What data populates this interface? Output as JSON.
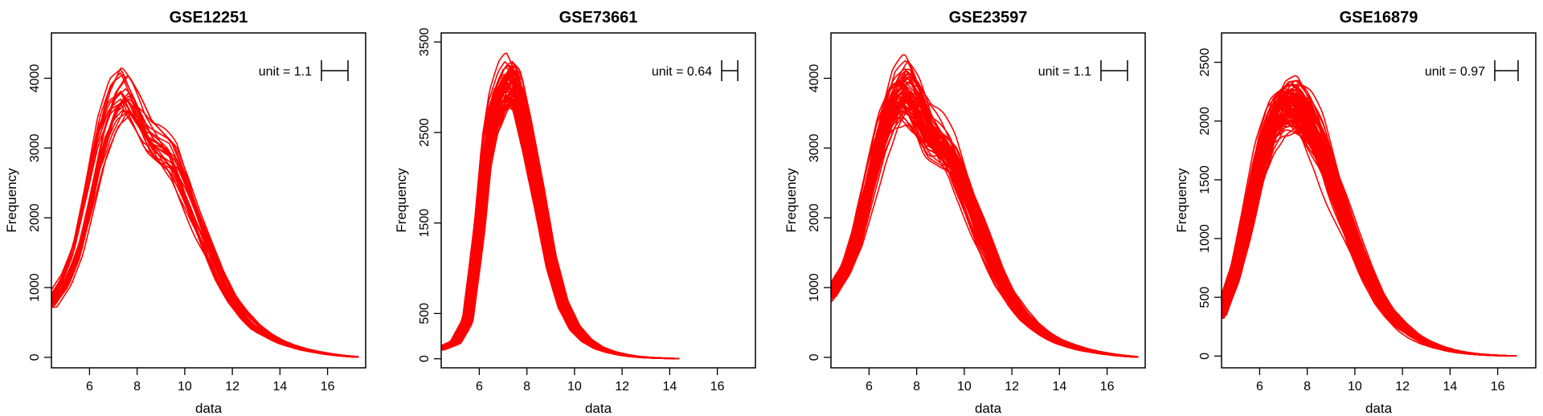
{
  "line_color": "#ff0000",
  "chart_data": [
    {
      "type": "line",
      "title": "GSE12251",
      "xlabel": "data",
      "ylabel": "Frequency",
      "xlim": [
        4.4,
        17.6
      ],
      "ylim": [
        -150,
        4650
      ],
      "xticks": [
        6,
        8,
        10,
        12,
        14,
        16
      ],
      "yticks": [
        0,
        1000,
        2000,
        3000,
        4000
      ],
      "unit_label": "unit = 1.1",
      "grid": false,
      "x_end": 17.3,
      "curve_count": 23,
      "profile": {
        "x": [
          4.4,
          5.0,
          5.5,
          6.0,
          6.5,
          7.0,
          7.5,
          8.0,
          8.5,
          9.0,
          9.5,
          10.0,
          10.5,
          11.0,
          11.5,
          12.0,
          12.5,
          13.0,
          13.5,
          14.0,
          14.5,
          15.0,
          15.5,
          16.0,
          16.5,
          17.0,
          17.3
        ],
        "y": [
          780,
          1100,
          1550,
          2300,
          3100,
          3600,
          3800,
          3500,
          3150,
          3000,
          2850,
          2450,
          1980,
          1560,
          1150,
          830,
          600,
          430,
          320,
          230,
          165,
          115,
          80,
          50,
          28,
          12,
          5
        ]
      }
    },
    {
      "type": "line",
      "title": "GSE73661",
      "xlabel": "data",
      "ylabel": "Frequency",
      "xlim": [
        4.4,
        17.6
      ],
      "ylim": [
        -100,
        3600
      ],
      "xticks": [
        6,
        8,
        10,
        12,
        14,
        16
      ],
      "yticks": [
        0,
        500,
        1500,
        2500,
        3500
      ],
      "unit_label": "unit = 0.64",
      "grid": false,
      "x_end": 14.4,
      "curve_count": 60,
      "profile": {
        "x": [
          4.4,
          5.0,
          5.5,
          6.0,
          6.3,
          6.6,
          7.0,
          7.3,
          7.6,
          8.0,
          8.5,
          9.0,
          9.5,
          10.0,
          10.5,
          11.0,
          11.5,
          12.0,
          12.5,
          13.0,
          13.5,
          14.0,
          14.4
        ],
        "y": [
          110,
          180,
          420,
          1450,
          2250,
          2650,
          2900,
          3000,
          2900,
          2450,
          1800,
          1080,
          600,
          340,
          200,
          120,
          75,
          45,
          25,
          14,
          8,
          4,
          2
        ]
      }
    },
    {
      "type": "line",
      "title": "GSE23597",
      "xlabel": "data",
      "ylabel": "Frequency",
      "xlim": [
        4.4,
        17.6
      ],
      "ylim": [
        -150,
        4650
      ],
      "xticks": [
        6,
        8,
        10,
        12,
        14,
        16
      ],
      "yticks": [
        0,
        1000,
        2000,
        3000,
        4000
      ],
      "unit_label": "unit = 1.1",
      "grid": false,
      "x_end": 17.3,
      "curve_count": 60,
      "profile": {
        "x": [
          4.4,
          5.0,
          5.5,
          6.0,
          6.5,
          7.0,
          7.5,
          8.0,
          8.5,
          9.0,
          9.5,
          10.0,
          10.5,
          11.0,
          11.5,
          12.0,
          12.5,
          13.0,
          13.5,
          14.0,
          14.5,
          15.0,
          15.5,
          16.0,
          16.5,
          17.0,
          17.3
        ],
        "y": [
          900,
          1250,
          1750,
          2500,
          3250,
          3700,
          3850,
          3600,
          3200,
          3050,
          2850,
          2450,
          1980,
          1550,
          1150,
          830,
          600,
          430,
          320,
          230,
          165,
          115,
          80,
          50,
          28,
          12,
          5
        ]
      }
    },
    {
      "type": "line",
      "title": "GSE16879",
      "xlabel": "data",
      "ylabel": "Frequency",
      "xlim": [
        4.4,
        17.6
      ],
      "ylim": [
        -100,
        2750
      ],
      "xticks": [
        6,
        8,
        10,
        12,
        14,
        16
      ],
      "yticks": [
        0,
        500,
        1000,
        1500,
        2000,
        2500
      ],
      "unit_label": "unit = 0.97",
      "grid": false,
      "x_end": 16.8,
      "curve_count": 90,
      "profile": {
        "x": [
          4.4,
          5.0,
          5.5,
          6.0,
          6.5,
          7.0,
          7.5,
          8.0,
          8.5,
          9.0,
          9.5,
          10.0,
          10.5,
          11.0,
          11.5,
          12.0,
          12.5,
          13.0,
          13.5,
          14.0,
          14.5,
          15.0,
          15.5,
          16.0,
          16.5,
          16.8
        ],
        "y": [
          360,
          700,
          1150,
          1650,
          1970,
          2130,
          2150,
          2000,
          1800,
          1500,
          1220,
          940,
          700,
          500,
          350,
          245,
          170,
          115,
          75,
          48,
          30,
          18,
          10,
          5,
          2,
          1
        ]
      }
    }
  ]
}
